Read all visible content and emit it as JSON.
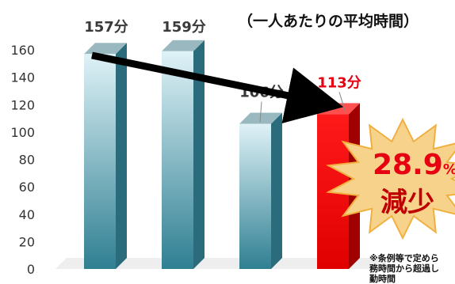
{
  "chart_data": {
    "type": "bar",
    "subtitle": "（一人あたりの平均時間）",
    "categories": [
      "",
      "",
      "",
      ""
    ],
    "values": [
      157,
      159,
      106,
      113
    ],
    "data_labels": [
      "157分",
      "159分",
      "106分",
      "113分"
    ],
    "label_colors": [
      "#3a3a3a",
      "#3a3a3a",
      "#3a3a3a",
      "#e60012"
    ],
    "bar_colors": [
      {
        "top": "#dff2f7",
        "bottom": "#2f7f92"
      },
      {
        "top": "#dff2f7",
        "bottom": "#2f7f92"
      },
      {
        "top": "#dff2f7",
        "bottom": "#2f7f92"
      },
      {
        "top": "#ff1a1a",
        "bottom": "#e00000"
      }
    ],
    "yticks": [
      0,
      20,
      40,
      60,
      80,
      100,
      120,
      140,
      160
    ],
    "ylim": [
      0,
      170
    ],
    "grid": false,
    "arrow": {
      "from_bar": 0,
      "to_bar": 3,
      "color": "#000000"
    },
    "callout": {
      "percent": "28.9",
      "percent_unit": "%",
      "word": "減少",
      "burst_color": "#f7d28b",
      "burst_stroke": "#f0b040"
    },
    "note_lines": [
      "※条例等で定めら",
      "務時間から超過し",
      "勤時間"
    ]
  }
}
